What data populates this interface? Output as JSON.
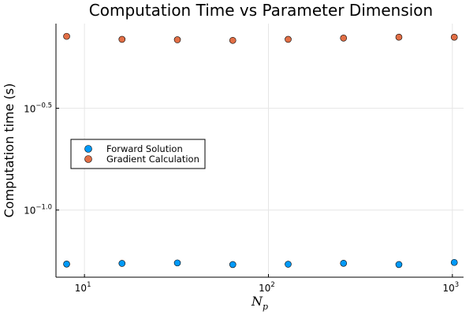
{
  "chart_data": {
    "type": "scatter",
    "title": "Computation Time vs Parameter Dimension",
    "ylabel": "Computation time (s)",
    "xlabel_main": "N",
    "xlabel_sub": "p",
    "xscale": "log10",
    "yscale": "log10",
    "xlim": [
      7,
      1150
    ],
    "ylim": [
      0.0468,
      0.823
    ],
    "grid": true,
    "legend_position": "center-left",
    "x_ticks": [
      {
        "value": 10,
        "base": "10",
        "exp": "1"
      },
      {
        "value": 100,
        "base": "10",
        "exp": "2"
      },
      {
        "value": 1000,
        "base": "10",
        "exp": "3"
      }
    ],
    "y_ticks": [
      {
        "value": 0.3162,
        "base": "10",
        "exp": "−0.5"
      },
      {
        "value": 0.1,
        "base": "10",
        "exp": "−1.0"
      }
    ],
    "series": [
      {
        "name": "Forward Solution",
        "color": "#009af9",
        "x": [
          8,
          16,
          32,
          64,
          128,
          256,
          512,
          1024
        ],
        "y": [
          0.0543,
          0.0547,
          0.055,
          0.054,
          0.0542,
          0.0548,
          0.054,
          0.0553
        ]
      },
      {
        "name": "Gradient Calculation",
        "color": "#e26f46",
        "x": [
          8,
          16,
          32,
          64,
          128,
          256,
          512,
          1024
        ],
        "y": [
          0.713,
          0.689,
          0.686,
          0.681,
          0.689,
          0.699,
          0.706,
          0.706
        ]
      }
    ]
  }
}
